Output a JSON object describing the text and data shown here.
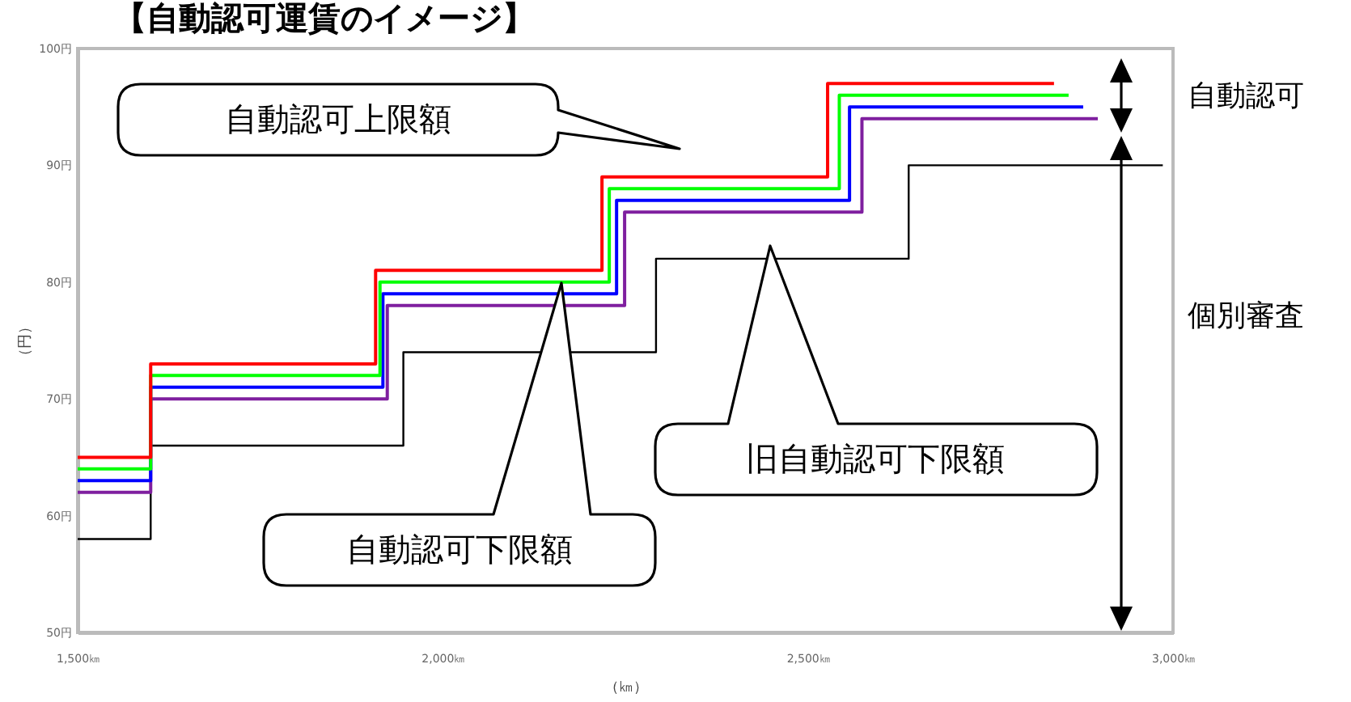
{
  "chart_data": {
    "type": "step",
    "title": "【自動認可運賃のイメージ】",
    "xlabel": "（㎞）",
    "ylabel": "（円）",
    "xlim": [
      1500,
      3000
    ],
    "ylim": [
      50,
      100
    ],
    "xticks": [
      {
        "value": 1500,
        "label": "1,500㎞"
      },
      {
        "value": 2000,
        "label": "2,000㎞"
      },
      {
        "value": 2500,
        "label": "2,500㎞"
      },
      {
        "value": 3000,
        "label": "3,000㎞"
      }
    ],
    "yticks": [
      {
        "value": 50,
        "label": "50円"
      },
      {
        "value": 60,
        "label": "60円"
      },
      {
        "value": 70,
        "label": "70円"
      },
      {
        "value": 80,
        "label": "80円"
      },
      {
        "value": 90,
        "label": "90円"
      },
      {
        "value": 100,
        "label": "100円"
      }
    ],
    "grid": false,
    "marker": "none",
    "line_style": "solid",
    "series": [
      {
        "color": "#000000",
        "x": [
          1500,
          1600,
          1946,
          2292,
          2638,
          2986
        ],
        "values": [
          58,
          66,
          74,
          82,
          90,
          90
        ]
      },
      {
        "color": "#7f1f9f",
        "x": [
          1500,
          1600,
          1924,
          2249,
          2574,
          2897
        ],
        "values": [
          62,
          70,
          78,
          86,
          94,
          94
        ]
      },
      {
        "color": "#0000ff",
        "x": [
          1500,
          1600,
          1918,
          2238,
          2557,
          2877
        ],
        "values": [
          63,
          71,
          79,
          87,
          95,
          95
        ]
      },
      {
        "color": "#00ff00",
        "x": [
          1500,
          1600,
          1914,
          2228,
          2543,
          2857
        ],
        "values": [
          64,
          72,
          80,
          88,
          96,
          96
        ]
      },
      {
        "color": "#ff0000",
        "x": [
          1500,
          1600,
          1908,
          2218,
          2527,
          2837
        ],
        "values": [
          65,
          73,
          81,
          89,
          97,
          97
        ]
      }
    ],
    "annotations": [
      "自動認可上限額",
      "自動認可下限額",
      "旧自動認可下限額",
      "自動認可",
      "個別審査"
    ]
  }
}
